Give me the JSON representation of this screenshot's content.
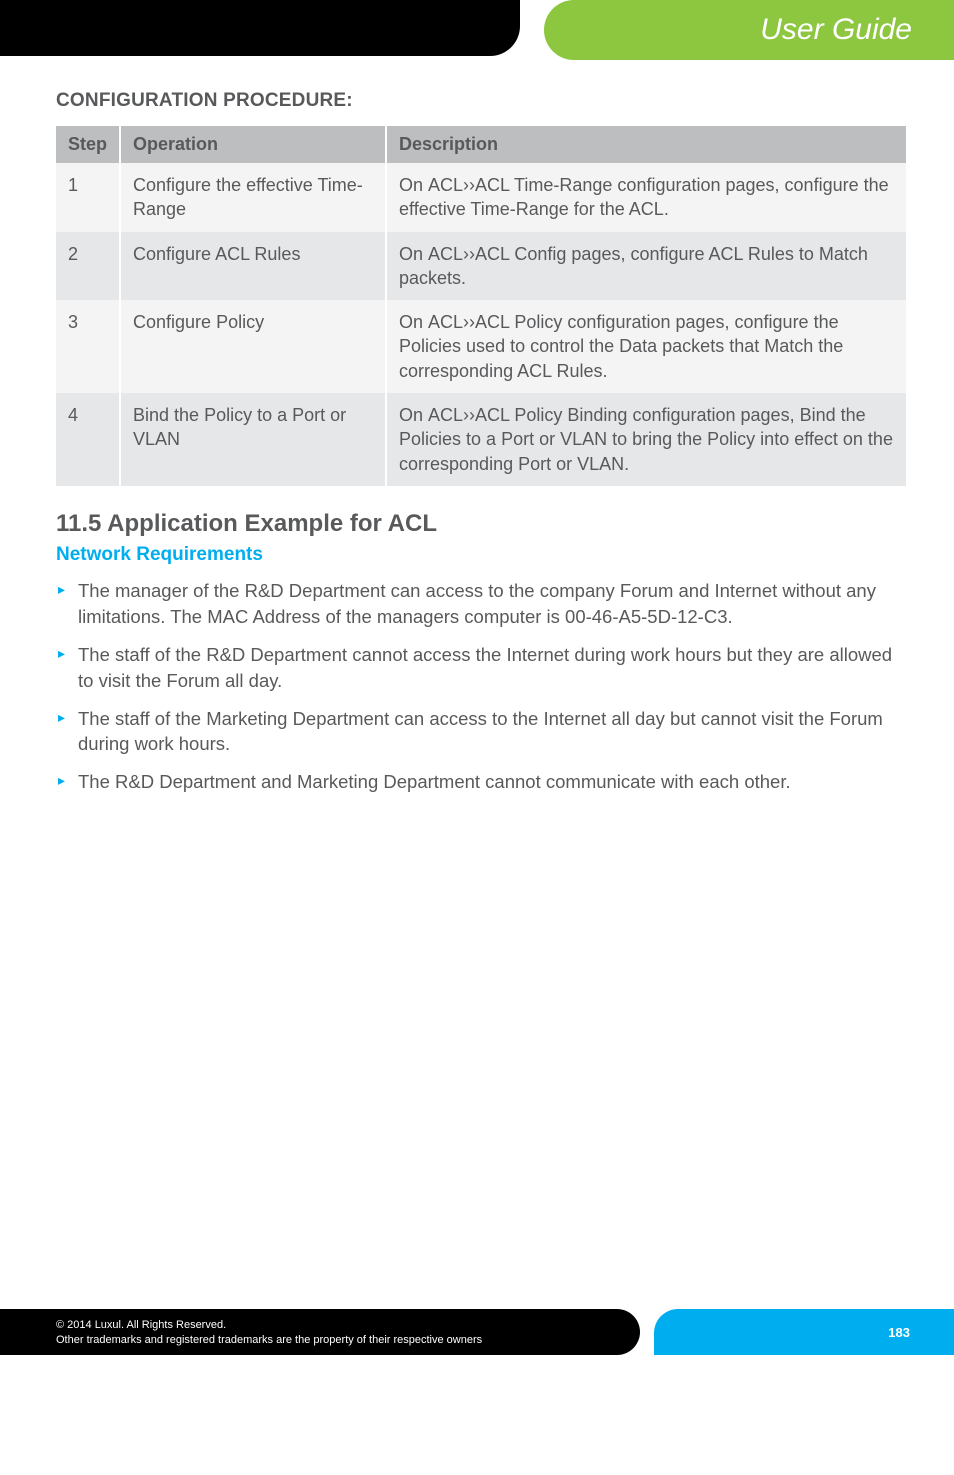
{
  "header": {
    "title": "User Guide"
  },
  "section_heading": "CONFIGURATION PROCEDURE:",
  "table": {
    "columns": [
      "Step",
      "Operation",
      "Description"
    ],
    "rows": [
      {
        "step": "1",
        "operation": "Configure the effective Time-Range",
        "desc_prefix": "On ",
        "desc_bold": "ACL››ACL Time-Range configuration",
        "desc_suffix": " pages, configure the effective Time-Range for the ACL."
      },
      {
        "step": "2",
        "operation": "Configure ACL Rules",
        "desc_prefix": "On ",
        "desc_bold": "ACL››ACL Config",
        "desc_suffix": " pages, configure ACL Rules to Match packets."
      },
      {
        "step": "3",
        "operation": "Configure Policy",
        "desc_prefix": "On ",
        "desc_bold": "ACL››ACL Policy",
        "desc_suffix": " configuration pages, configure the Policies used to control the Data packets that Match the corresponding ACL Rules."
      },
      {
        "step": "4",
        "operation": "Bind the Policy to a Port or VLAN",
        "desc_prefix": "On ",
        "desc_bold": "ACL››ACL Policy Binding",
        "desc_suffix": " configuration pages, Bind the Policies to a Port or VLAN to bring the Policy into effect on the corresponding Port or VLAN."
      }
    ]
  },
  "app_title": "11.5 Application Example for ACL",
  "subhead": "Network Requirements",
  "bullets": [
    "The manager of the R&D Department can access to the company Forum and Internet without any limitations. The MAC Address of the managers computer is 00-46-A5-5D-12-C3.",
    "The staff of the R&D Department cannot access the Internet during work hours but they are allowed to visit the Forum all day.",
    "The staff of the Marketing Department can access to the Internet all day but cannot visit the Forum during work hours.",
    "The R&D Department and Marketing Department cannot communicate with each other."
  ],
  "footer": {
    "line1": "© 2014  Luxul. All Rights Reserved.",
    "line2": "Other trademarks and registered trademarks are the property of their respective owners",
    "page": "183"
  },
  "colors": {
    "green": "#8dc63f",
    "blue": "#00aeef",
    "th_bg": "#bcbec0",
    "row_odd": "#f4f4f4",
    "row_even": "#e6e7e8",
    "text": "#58595b"
  }
}
